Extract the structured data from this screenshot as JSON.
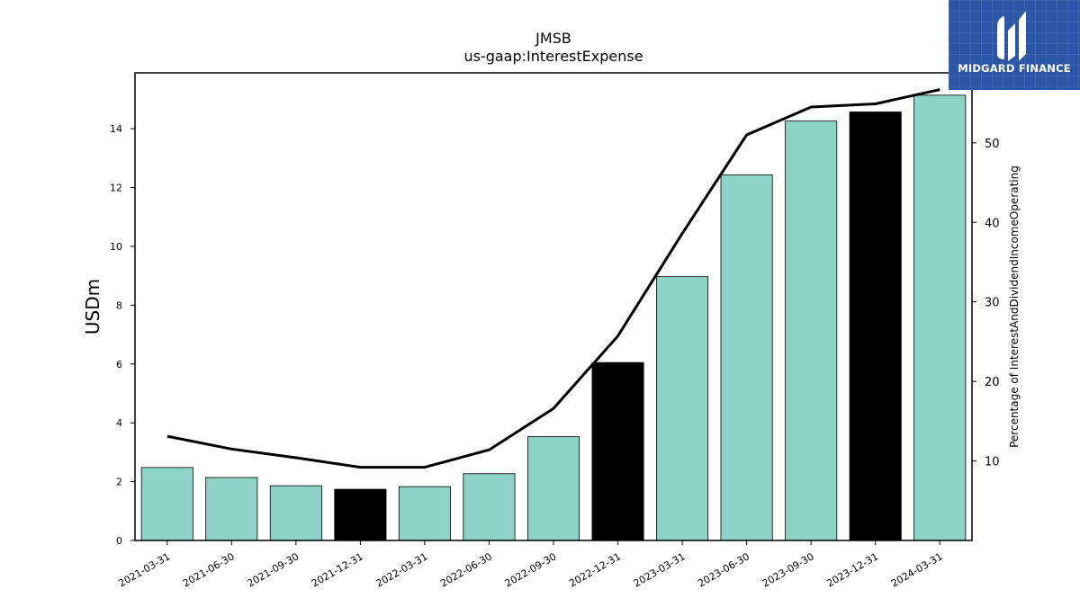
{
  "chart_data": {
    "type": "bar",
    "title": "JMSB",
    "subtitle": "us-gaap:InterestExpense",
    "ylabel": "USDm",
    "y2label": "Percentage of InterestAndDividendIncomeOperating",
    "ylim": [
      0,
      15.9
    ],
    "y2lim": [
      0,
      58.8
    ],
    "yticks": [
      0,
      2,
      4,
      6,
      8,
      10,
      12,
      14
    ],
    "y2ticks": [
      10,
      20,
      30,
      40,
      50
    ],
    "categories": [
      "2021-03-31",
      "2021-06-30",
      "2021-09-30",
      "2021-12-31",
      "2022-03-31",
      "2022-06-30",
      "2022-09-30",
      "2022-12-31",
      "2023-03-31",
      "2023-06-30",
      "2023-09-30",
      "2023-12-31",
      "2024-03-31"
    ],
    "series": [
      {
        "kind": "bar",
        "axis": "left",
        "values": [
          2.48,
          2.14,
          1.86,
          1.74,
          1.83,
          2.27,
          3.53,
          6.05,
          8.97,
          12.43,
          14.26,
          14.57,
          15.14
        ],
        "highlighted": [
          false,
          false,
          false,
          true,
          false,
          false,
          false,
          true,
          false,
          false,
          false,
          true,
          false
        ]
      },
      {
        "kind": "line",
        "axis": "right",
        "values": [
          13.1,
          11.5,
          10.4,
          9.2,
          9.2,
          11.4,
          16.6,
          25.7,
          38.6,
          51.0,
          54.5,
          54.9,
          56.7
        ]
      }
    ],
    "colors": {
      "bar": "#8dd3c7",
      "bar_highlight": "#000000",
      "line": "#000000"
    },
    "grid": false,
    "legend": "none"
  },
  "logo": {
    "text": "MIDGARD FINANCE",
    "icon": "midgard-finance-logo-mark",
    "background": "#2b56a8"
  }
}
